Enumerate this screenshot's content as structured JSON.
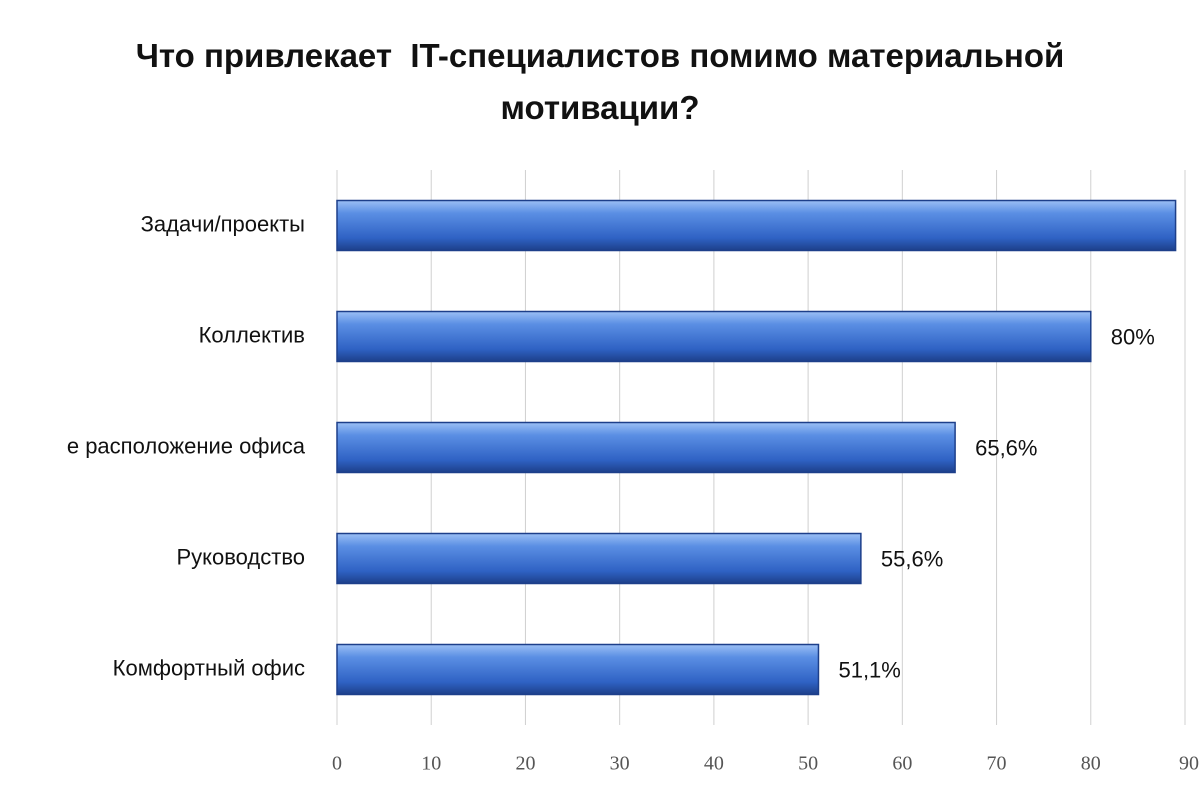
{
  "chart_data": {
    "type": "bar",
    "orientation": "horizontal",
    "title": "Что привлекает  IT-специалистов помимо материальной мотивации?",
    "categories": [
      "Задачи/проекты",
      "Коллектив",
      "е расположение офиса",
      "Руководство",
      "Комфортный офис"
    ],
    "values": [
      89,
      80,
      65.6,
      55.6,
      51.1
    ],
    "value_labels": [
      null,
      "80%",
      "65,6%",
      "55,6%",
      "51,1%"
    ],
    "color": "#3a6fd0",
    "xlim": [
      0,
      90
    ],
    "xticks": [
      0,
      10,
      20,
      30,
      40,
      50,
      60,
      70,
      80,
      90
    ],
    "grid": true
  }
}
